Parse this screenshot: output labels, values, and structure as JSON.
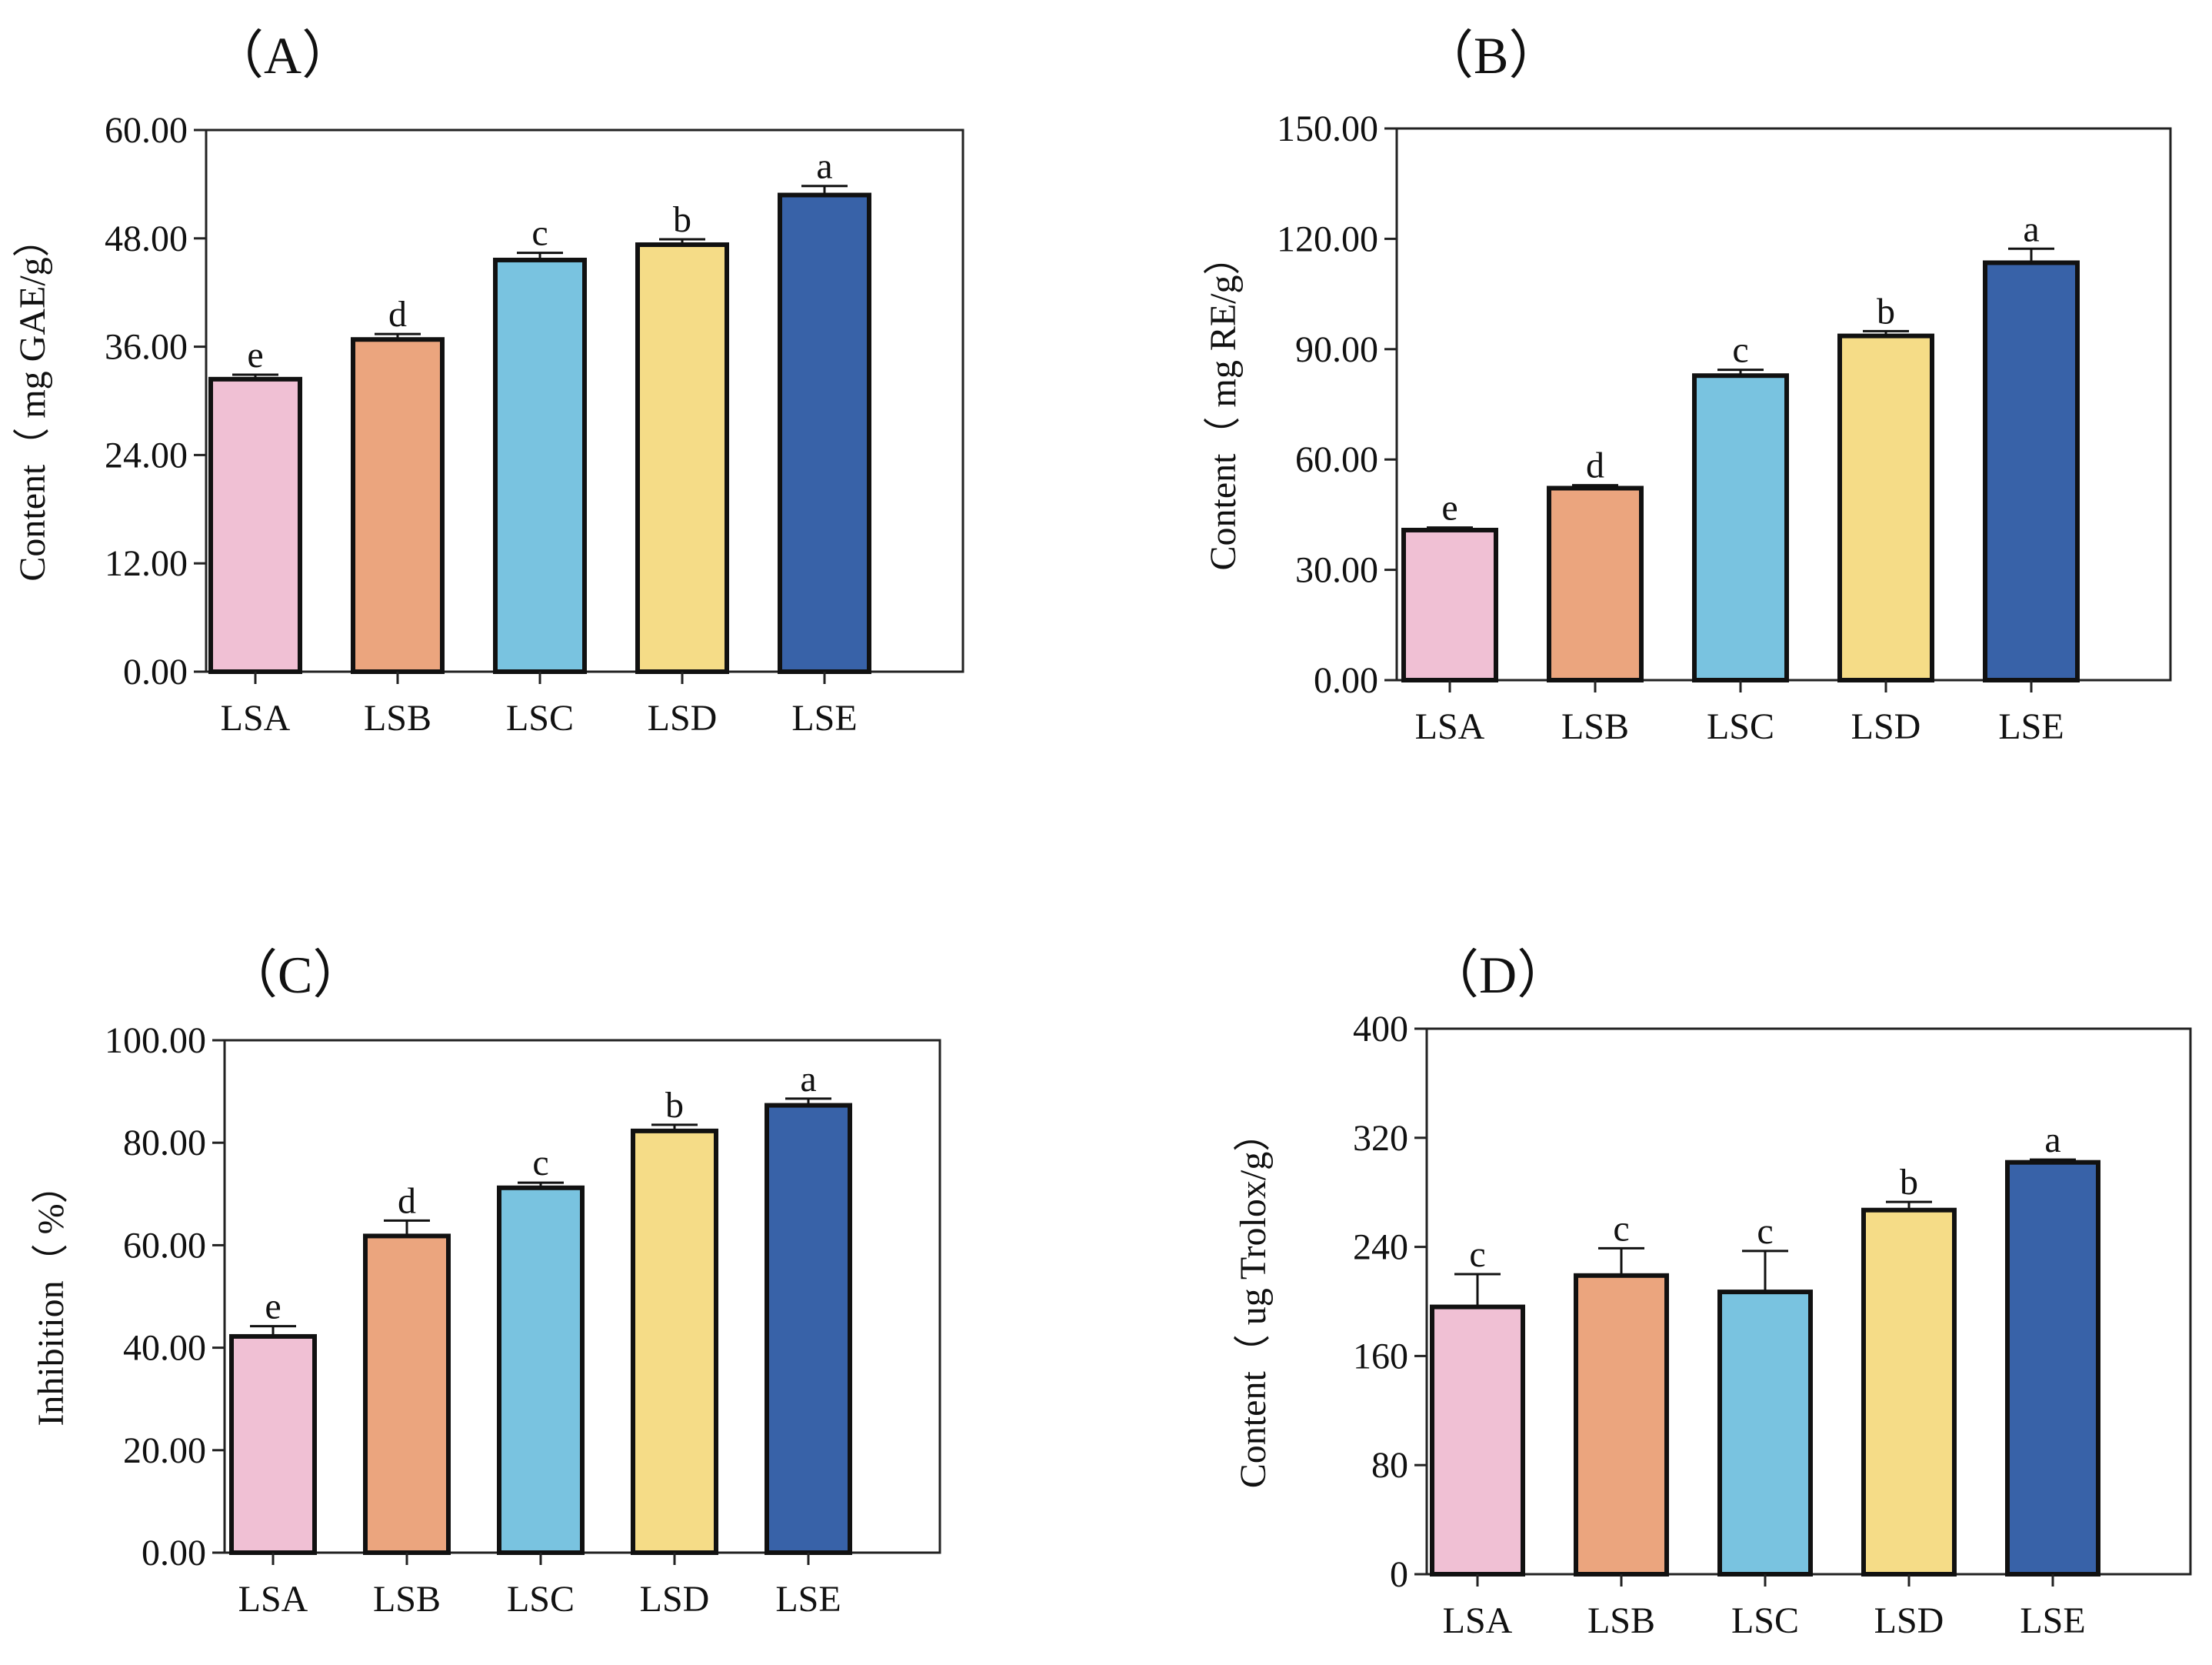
{
  "figure": {
    "categories": [
      "LSA",
      "LSB",
      "LSC",
      "LSD",
      "LSE"
    ],
    "colors": [
      "#f0c0d4",
      "#eba57e",
      "#79c3e0",
      "#f5dc87",
      "#3862a8"
    ]
  },
  "chart_data": [
    {
      "type": "bar",
      "panel": "A",
      "title": "（A）",
      "ylabel": "Content（ mg GAE/g）",
      "xlabel": "",
      "categories": [
        "LSA",
        "LSB",
        "LSC",
        "LSD",
        "LSE"
      ],
      "values": [
        32.4,
        36.8,
        45.6,
        47.3,
        52.8
      ],
      "errors": [
        0.5,
        0.6,
        0.8,
        0.6,
        1.0
      ],
      "significance": [
        "e",
        "d",
        "c",
        "b",
        "a"
      ],
      "ylim": [
        0,
        60
      ],
      "yticks": [
        "0.00",
        "12.00",
        "24.00",
        "36.00",
        "48.00",
        "60.00"
      ]
    },
    {
      "type": "bar",
      "panel": "B",
      "title": "（B）",
      "ylabel": "Content（ mg RE/g）",
      "xlabel": "",
      "categories": [
        "LSA",
        "LSB",
        "LSC",
        "LSD",
        "LSE"
      ],
      "values": [
        40.8,
        52.2,
        82.8,
        93.6,
        113.5
      ],
      "errors": [
        0.7,
        0.8,
        1.6,
        1.3,
        3.8
      ],
      "significance": [
        "e",
        "d",
        "c",
        "b",
        "a"
      ],
      "ylim": [
        0,
        150
      ],
      "yticks": [
        "0.00",
        "30.00",
        "60.00",
        "90.00",
        "120.00",
        "150.00"
      ]
    },
    {
      "type": "bar",
      "panel": "C",
      "title": "（C）",
      "ylabel": "Inhibition（ %）",
      "xlabel": "",
      "categories": [
        "LSA",
        "LSB",
        "LSC",
        "LSD",
        "LSE"
      ],
      "values": [
        42.2,
        61.8,
        71.2,
        82.3,
        87.3
      ],
      "errors": [
        2.0,
        3.0,
        1.0,
        1.2,
        1.3
      ],
      "significance": [
        "e",
        "d",
        "c",
        "b",
        "a"
      ],
      "ylim": [
        0,
        100
      ],
      "yticks": [
        "0.00",
        "20.00",
        "40.00",
        "60.00",
        "80.00",
        "100.00"
      ]
    },
    {
      "type": "bar",
      "panel": "D",
      "title": "（D）",
      "ylabel": "Content（ ug Trolox/g）",
      "xlabel": "",
      "categories": [
        "LSA",
        "LSB",
        "LSC",
        "LSD",
        "LSE"
      ],
      "values": [
        196,
        219,
        207,
        267,
        302
      ],
      "errors": [
        24,
        20,
        30,
        6,
        2
      ],
      "significance": [
        "c",
        "c",
        "c",
        "b",
        "a"
      ],
      "ylim": [
        0,
        400
      ],
      "yticks": [
        "0",
        "80",
        "160",
        "240",
        "320",
        "400"
      ]
    }
  ]
}
